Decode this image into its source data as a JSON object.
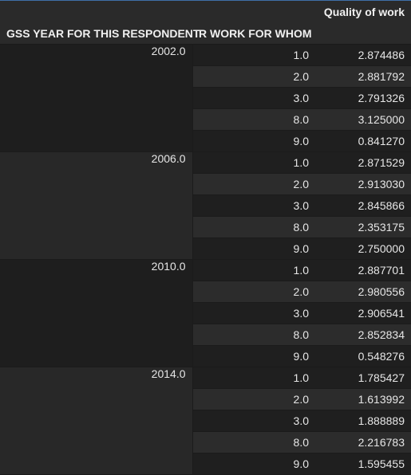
{
  "table": {
    "value_column": "Quality of work",
    "index_names": [
      "GSS YEAR FOR THIS RESPONDENT",
      "R WORK FOR WHOM"
    ],
    "groups": [
      {
        "year": "2002.0",
        "rows": [
          {
            "who": "1.0",
            "value": "2.874486"
          },
          {
            "who": "2.0",
            "value": "2.881792"
          },
          {
            "who": "3.0",
            "value": "2.791326"
          },
          {
            "who": "8.0",
            "value": "3.125000"
          },
          {
            "who": "9.0",
            "value": "0.841270"
          }
        ]
      },
      {
        "year": "2006.0",
        "rows": [
          {
            "who": "1.0",
            "value": "2.871529"
          },
          {
            "who": "2.0",
            "value": "2.913030"
          },
          {
            "who": "3.0",
            "value": "2.845866"
          },
          {
            "who": "8.0",
            "value": "2.353175"
          },
          {
            "who": "9.0",
            "value": "2.750000"
          }
        ]
      },
      {
        "year": "2010.0",
        "rows": [
          {
            "who": "1.0",
            "value": "2.887701"
          },
          {
            "who": "2.0",
            "value": "2.980556"
          },
          {
            "who": "3.0",
            "value": "2.906541"
          },
          {
            "who": "8.0",
            "value": "2.852834"
          },
          {
            "who": "9.0",
            "value": "0.548276"
          }
        ]
      },
      {
        "year": "2014.0",
        "rows": [
          {
            "who": "1.0",
            "value": "1.785427"
          },
          {
            "who": "2.0",
            "value": "1.613992"
          },
          {
            "who": "3.0",
            "value": "1.888889"
          },
          {
            "who": "8.0",
            "value": "2.216783"
          },
          {
            "who": "9.0",
            "value": "1.595455"
          }
        ]
      }
    ]
  }
}
